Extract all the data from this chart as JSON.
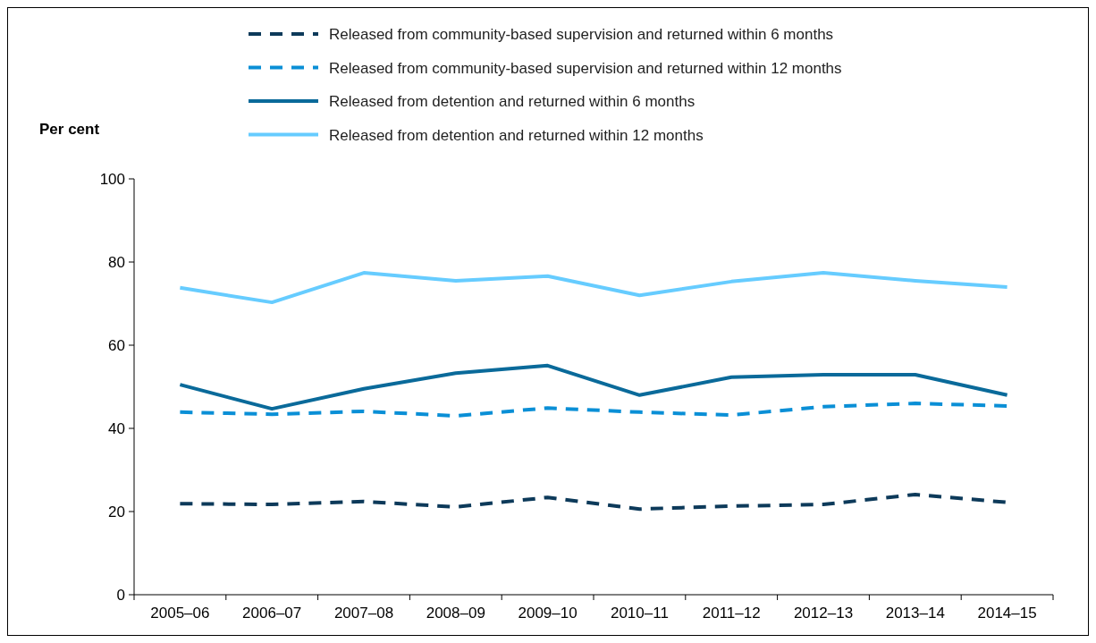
{
  "chart_data": {
    "type": "line",
    "ylabel": "Per cent",
    "categories": [
      "2005–06",
      "2006–07",
      "2007–08",
      "2008–09",
      "2009–10",
      "2010–11",
      "2011–12",
      "2012–13",
      "2013–14",
      "2014–15"
    ],
    "ylim": [
      0,
      100
    ],
    "yticks": [
      0,
      20,
      40,
      60,
      80,
      100
    ],
    "grid": false,
    "legend": "top",
    "marker": "none",
    "series": [
      {
        "name": "Released from community-based supervision and returned within 6 months",
        "color": "#0d3a5a",
        "line_style": "dashed",
        "values": [
          21.9,
          21.7,
          22.4,
          21.1,
          23.4,
          20.6,
          21.3,
          21.7,
          24.1,
          22.2
        ]
      },
      {
        "name": "Released from community-based supervision and returned within 12 months",
        "color": "#0a8fd6",
        "line_style": "dashed",
        "values": [
          43.9,
          43.4,
          44.1,
          43.0,
          44.9,
          43.9,
          43.2,
          45.2,
          46.0,
          45.4
        ]
      },
      {
        "name": "Released from detention and returned within 6 months",
        "color": "#0a6a9a",
        "line_style": "solid",
        "values": [
          50.5,
          44.7,
          49.5,
          53.3,
          55.1,
          48.0,
          52.3,
          52.9,
          52.9,
          48.0
        ]
      },
      {
        "name": "Released from detention and returned within 12 months",
        "color": "#66ccff",
        "line_style": "solid",
        "values": [
          73.8,
          70.3,
          77.4,
          75.5,
          76.6,
          72.0,
          75.3,
          77.4,
          75.5,
          74.0
        ]
      }
    ]
  }
}
